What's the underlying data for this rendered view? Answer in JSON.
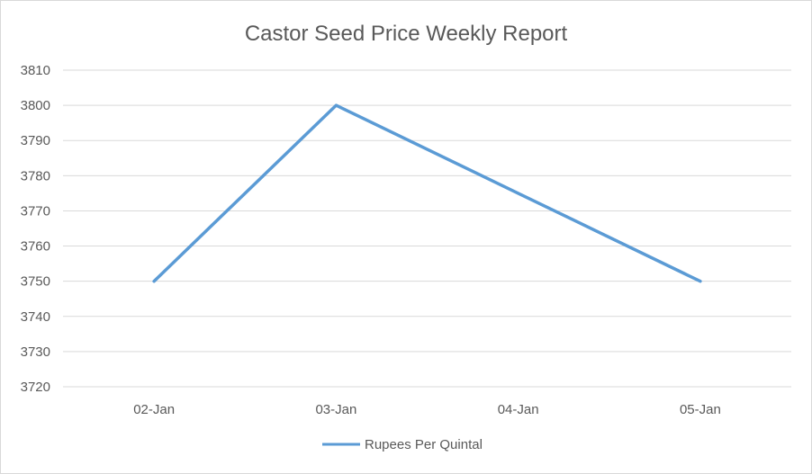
{
  "chart_data": {
    "type": "line",
    "title": "Castor Seed Price Weekly Report",
    "categories": [
      "02-Jan",
      "03-Jan",
      "04-Jan",
      "05-Jan"
    ],
    "series": [
      {
        "name": "Rupees Per Quintal",
        "values": [
          3750,
          3800,
          3775,
          3750
        ],
        "color": "#5b9bd5"
      }
    ],
    "ylim": [
      3720,
      3810
    ],
    "yticks": [
      3720,
      3730,
      3740,
      3750,
      3760,
      3770,
      3780,
      3790,
      3800,
      3810
    ],
    "grid": true,
    "legend_position": "bottom"
  }
}
